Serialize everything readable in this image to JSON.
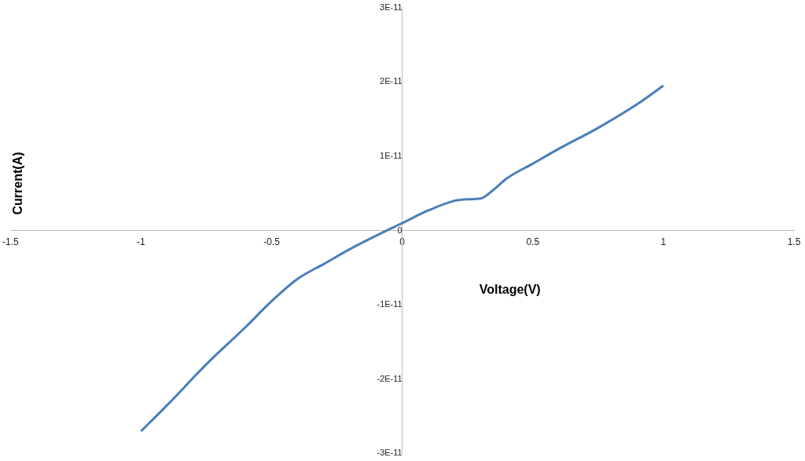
{
  "chart_data": {
    "type": "line",
    "xlabel": "Voltage(V)",
    "ylabel": "Current(A)",
    "x": [
      -1,
      -0.9,
      -0.75,
      -0.6,
      -0.5,
      -0.4,
      -0.3,
      -0.2,
      -0.1,
      0,
      0.1,
      0.2,
      0.25,
      0.3,
      0.35,
      0.4,
      0.5,
      0.6,
      0.75,
      0.9,
      1
    ],
    "series": [
      {
        "color": "#4a7ebb",
        "values": [
          -2.7e-11,
          -2.35e-11,
          -1.8e-11,
          -1.3e-11,
          -9.5e-12,
          -6.5e-12,
          -4.5e-12,
          -2.5e-12,
          -7e-13,
          1e-12,
          2.7e-12,
          4e-12,
          4.2e-12,
          4.3e-12,
          5.5e-12,
          7e-12,
          9e-12,
          1.1e-11,
          1.38e-11,
          1.7e-11,
          1.95e-11
        ]
      }
    ],
    "xlim": [
      -1.5,
      1.5
    ],
    "xticks": [
      -1.5,
      -1,
      -0.5,
      0,
      0.5,
      1,
      1.5
    ],
    "ylim": [
      -3e-11,
      3e-11
    ],
    "yticks": [
      {
        "value": -3e-11,
        "label": "-3E-11"
      },
      {
        "value": -2e-11,
        "label": "-2E-11"
      },
      {
        "value": -1e-11,
        "label": "-1E-11"
      },
      0,
      {
        "value": 1e-11,
        "label": "1E-11"
      },
      {
        "value": 2e-11,
        "label": "2E-11"
      },
      {
        "value": 3e-11,
        "label": "3E-11"
      }
    ],
    "grid": false,
    "legend": false
  }
}
